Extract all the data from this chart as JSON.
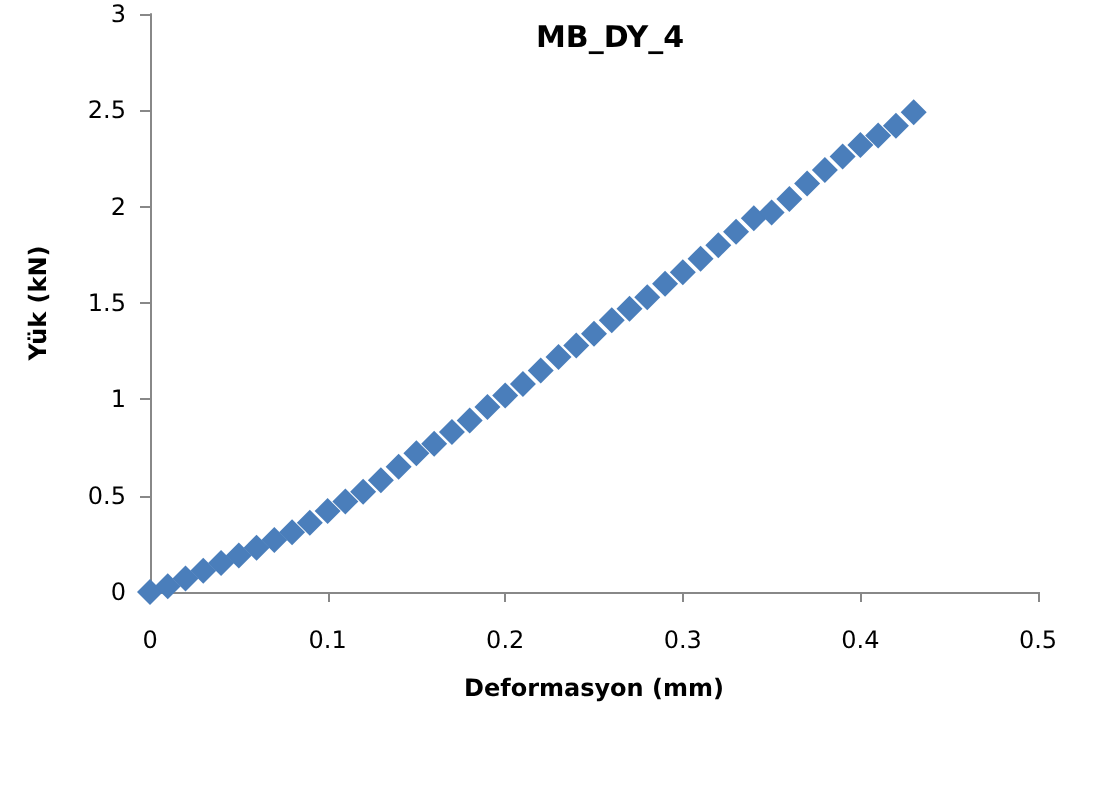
{
  "chart_data": {
    "type": "scatter",
    "title": "MB_DY_4",
    "xlabel": "Deformasyon (mm)",
    "ylabel": "Yük (kN)",
    "x": [
      0,
      0.01,
      0.02,
      0.03,
      0.04,
      0.05,
      0.06,
      0.07,
      0.08,
      0.09,
      0.1,
      0.11,
      0.12,
      0.13,
      0.14,
      0.15,
      0.16,
      0.17,
      0.18,
      0.19,
      0.2,
      0.21,
      0.22,
      0.23,
      0.24,
      0.25,
      0.26,
      0.27,
      0.28,
      0.29,
      0.3,
      0.31,
      0.32,
      0.33,
      0.34,
      0.35,
      0.36,
      0.37,
      0.38,
      0.39,
      0.4,
      0.41,
      0.42,
      0.43
    ],
    "series": [
      {
        "color": "#4a7ebb",
        "values": [
          0,
          0.03,
          0.07,
          0.11,
          0.15,
          0.19,
          0.23,
          0.27,
          0.31,
          0.36,
          0.42,
          0.47,
          0.52,
          0.58,
          0.65,
          0.72,
          0.77,
          0.83,
          0.89,
          0.96,
          1.02,
          1.08,
          1.15,
          1.22,
          1.28,
          1.34,
          1.41,
          1.47,
          1.53,
          1.6,
          1.66,
          1.73,
          1.8,
          1.87,
          1.94,
          1.97,
          2.04,
          2.12,
          2.19,
          2.26,
          2.32,
          2.37,
          2.42,
          2.49
        ]
      }
    ],
    "xlim": [
      0,
      0.5
    ],
    "xticks": [
      0,
      0.1,
      0.2,
      0.3,
      0.4,
      0.5
    ],
    "ylim": [
      0,
      3
    ],
    "yticks": [
      0,
      0.5,
      1,
      1.5,
      2,
      2.5,
      3
    ],
    "grid": false,
    "marker": "diamond"
  }
}
